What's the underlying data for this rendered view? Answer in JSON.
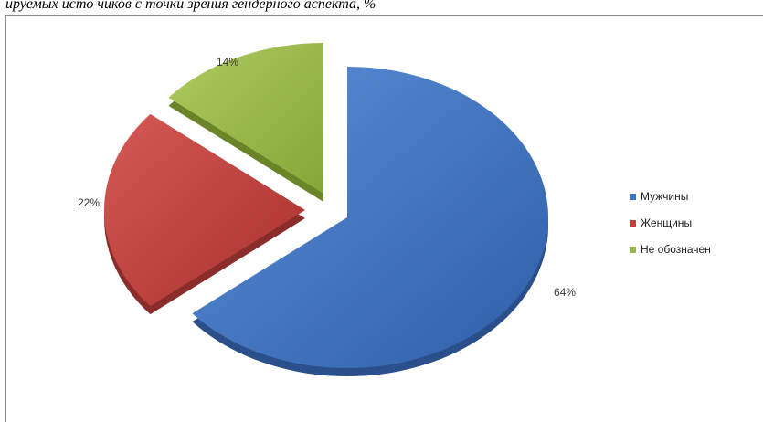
{
  "caption": "ируемых исто чиков с точки зрения гендерного аспекта, %",
  "chart_data": {
    "type": "pie",
    "title": "",
    "slices": [
      {
        "label": "Мужчины",
        "value": 64,
        "value_label": "64%",
        "color": "#4272c4"
      },
      {
        "label": "Женщины",
        "value": 22,
        "value_label": "22%",
        "color": "#c0403d"
      },
      {
        "label": "Не обозначен",
        "value": 14,
        "value_label": "14%",
        "color": "#98b84a"
      }
    ],
    "style": "3d-exploded",
    "legend_position": "right"
  }
}
